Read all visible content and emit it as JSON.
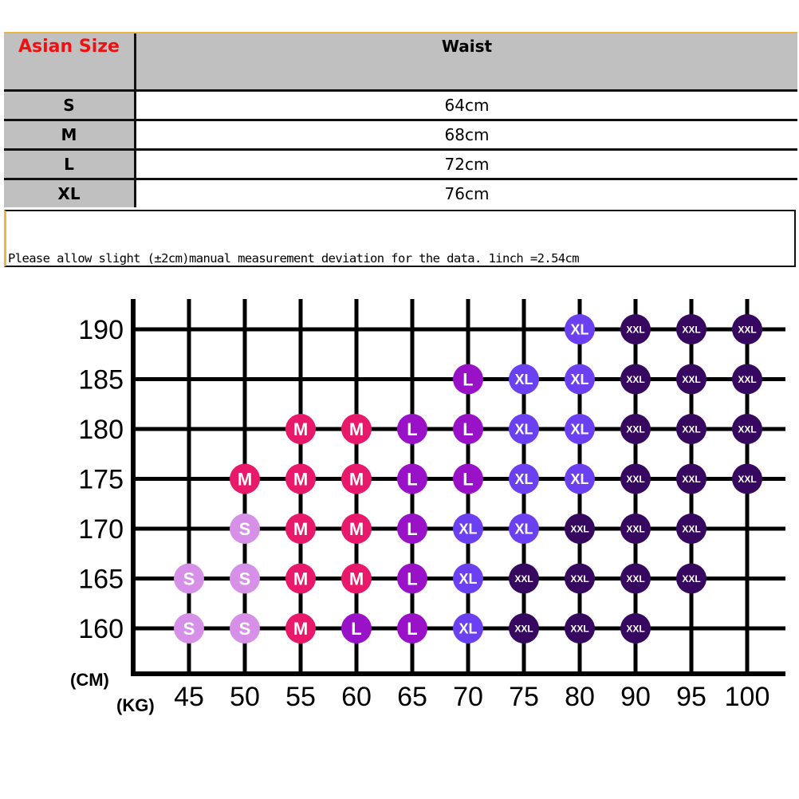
{
  "table": {
    "headers": [
      "Asian Size",
      "Waist"
    ],
    "rows": [
      {
        "size": "S",
        "waist": "64cm"
      },
      {
        "size": "M",
        "waist": "68cm"
      },
      {
        "size": "L",
        "waist": "72cm"
      },
      {
        "size": "XL",
        "waist": "76cm"
      }
    ],
    "header_color": "#f01010",
    "note": "Please allow slight (±2cm)manual measurement deviation for the data. 1inch =2.54cm"
  },
  "chart_data": {
    "type": "table",
    "ylabel": "(CM)",
    "xlabel": "(KG)",
    "x": [
      "45",
      "50",
      "55",
      "60",
      "65",
      "70",
      "75",
      "80",
      "90",
      "95",
      "100"
    ],
    "y": [
      "190",
      "185",
      "180",
      "175",
      "170",
      "165",
      "160"
    ],
    "cells": [
      [
        "",
        "",
        "",
        "",
        "",
        "",
        "",
        "XL",
        "XXL",
        "XXL",
        "XXL"
      ],
      [
        "",
        "",
        "",
        "",
        "",
        "L",
        "XL",
        "XL",
        "XXL",
        "XXL",
        "XXL"
      ],
      [
        "",
        "",
        "M",
        "M",
        "L",
        "L",
        "XL",
        "XL",
        "XXL",
        "XXL",
        "XXL"
      ],
      [
        "",
        "M",
        "M",
        "M",
        "L",
        "L",
        "XL",
        "XL",
        "XXL",
        "XXL",
        "XXL"
      ],
      [
        "",
        "S",
        "M",
        "M",
        "L",
        "XL",
        "XL",
        "XXL",
        "XXL",
        "XXL",
        ""
      ],
      [
        "S",
        "S",
        "M",
        "M",
        "L",
        "XL",
        "XXL",
        "XXL",
        "XXL",
        "XXL",
        ""
      ],
      [
        "S",
        "S",
        "M",
        "L",
        "L",
        "XL",
        "XXL",
        "XXL",
        "XXL",
        "",
        ""
      ]
    ],
    "colors": {
      "S": "#d690e8",
      "M": "#e8186a",
      "L": "#9a12c8",
      "XL": "#6a40f0",
      "XXL": "#36085f"
    }
  }
}
